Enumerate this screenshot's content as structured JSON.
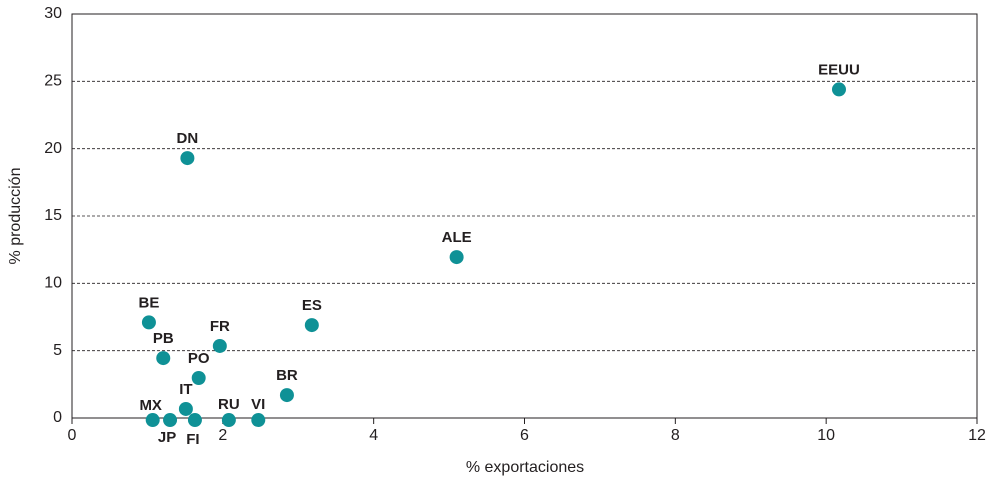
{
  "chart_data": {
    "type": "scatter",
    "x_label": "% exportaciones",
    "y_label": "% producción",
    "labels": [
      "EEUU",
      "DN",
      "ALE",
      "BE",
      "ES",
      "FR",
      "PB",
      "PO",
      "BR",
      "IT",
      "MX",
      "JP",
      "FI",
      "RU",
      "VI"
    ],
    "x": [
      10.17,
      1.53,
      5.1,
      1.02,
      3.18,
      1.96,
      1.21,
      1.68,
      2.85,
      1.51,
      1.07,
      1.3,
      1.63,
      2.08,
      2.47
    ],
    "values": [
      24.4,
      19.3,
      11.95,
      7.1,
      6.9,
      5.35,
      4.45,
      2.97,
      1.7,
      0.67,
      -0.15,
      -0.15,
      -0.15,
      -0.15,
      -0.15
    ],
    "color": "#0f9196",
    "xlim": [
      0,
      12
    ],
    "xticks": [
      0,
      2,
      4,
      6,
      8,
      10,
      12
    ],
    "ylim": [
      0,
      30
    ],
    "yticks": [
      0,
      5,
      10,
      15,
      20,
      25,
      30
    ],
    "grid": true
  }
}
